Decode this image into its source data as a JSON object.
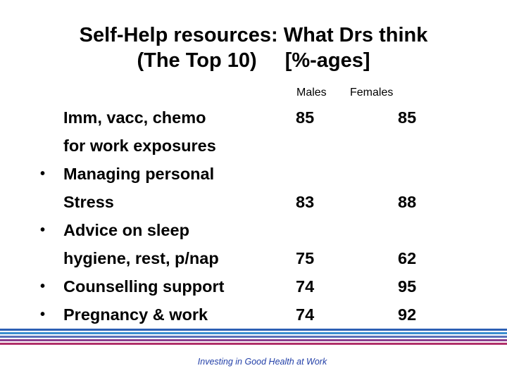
{
  "title": {
    "line1": "Self-Help resources: What Drs think",
    "line2_left": "(The Top 10)",
    "line2_right": "[%-ages]"
  },
  "columns": {
    "males": "Males",
    "females": "Females"
  },
  "items": [
    {
      "lines": [
        "Imm, vacc, chemo",
        "for work exposures"
      ],
      "bullet": false,
      "males": "85",
      "females": "85"
    },
    {
      "lines": [
        "Managing personal",
        "Stress"
      ],
      "bullet": true,
      "males": "83",
      "females": "88"
    },
    {
      "lines": [
        "Advice on sleep",
        "hygiene, rest, p/nap"
      ],
      "bullet": true,
      "males": "75",
      "females": "62"
    },
    {
      "lines": [
        "Counselling support"
      ],
      "bullet": true,
      "males": "74",
      "females": "95"
    },
    {
      "lines": [
        "Pregnancy & work"
      ],
      "bullet": true,
      "males": "74",
      "females": "92"
    }
  ],
  "bullet_glyph": "•",
  "footer": "Investing in Good Health at Work",
  "colors": {
    "footer_text": "#2340a8",
    "stripes": [
      "#2d5fb4",
      "#3b8ed0",
      "#5b6fb8",
      "#8a3f8e",
      "#b0306a"
    ]
  }
}
